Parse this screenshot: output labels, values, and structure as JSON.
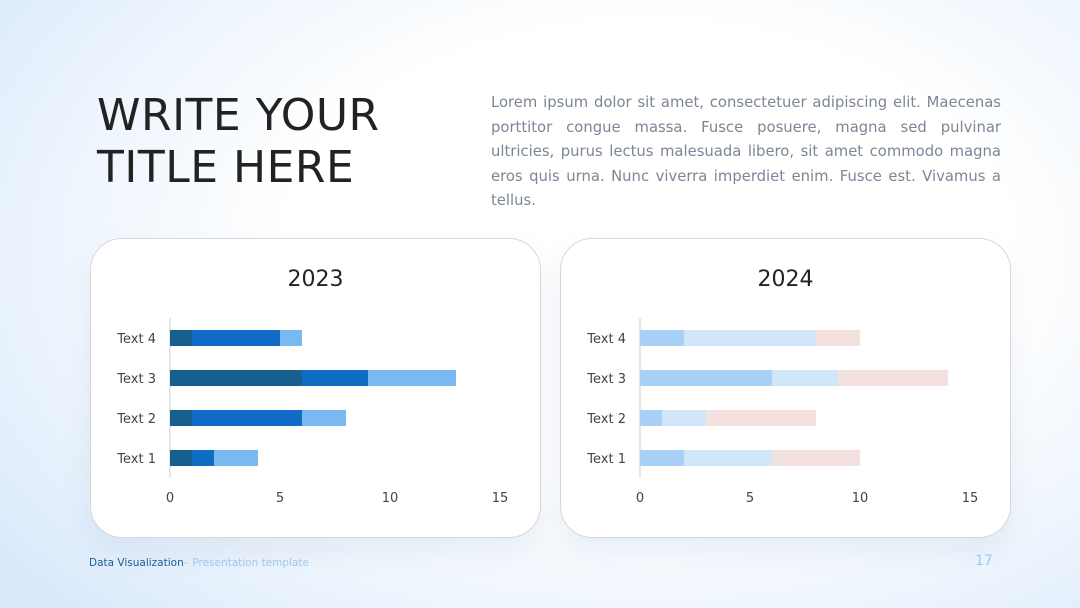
{
  "slide": {
    "title_lines": [
      "WRITE YOUR",
      "TITLE HERE"
    ],
    "body": "Lorem ipsum dolor sit amet, consectetuer adipiscing elit. Maecenas porttitor congue massa. Fusce posuere, magna sed pulvinar ultricies, purus lectus malesuada libero, sit amet commodo magna eros quis urna. Nunc viverra imperdiet enim. Fusce est. Vivamus a tellus.",
    "footer_main": "Data Visualization",
    "footer_sub": "– Presentation template",
    "page_number": "17"
  },
  "chart_data": [
    {
      "type": "bar",
      "orientation": "horizontal",
      "stacked": true,
      "title": "2023",
      "categories": [
        "Text 1",
        "Text 2",
        "Text 3",
        "Text 4"
      ],
      "series": [
        {
          "values": [
            1,
            1,
            6,
            1
          ],
          "color": "#175f8c"
        },
        {
          "values": [
            1,
            5,
            3,
            4
          ],
          "color": "#106bc4"
        },
        {
          "values": [
            2,
            2,
            4,
            1
          ],
          "color": "#7ab8f2"
        }
      ],
      "xlim": [
        0,
        15
      ],
      "xticks": [
        "0",
        "5",
        "10",
        "15"
      ],
      "grid": false
    },
    {
      "type": "bar",
      "orientation": "horizontal",
      "stacked": true,
      "title": "2024",
      "categories": [
        "Text 1",
        "Text 2",
        "Text 3",
        "Text 4"
      ],
      "series": [
        {
          "values": [
            2,
            1,
            6,
            2
          ],
          "color": "#a9d1f8"
        },
        {
          "values": [
            4,
            2,
            3,
            6
          ],
          "color": "#d2e6fa"
        },
        {
          "values": [
            4,
            5,
            5,
            2
          ],
          "color": "#f2e1df"
        }
      ],
      "xlim": [
        0,
        15
      ],
      "xticks": [
        "0",
        "5",
        "10",
        "15"
      ],
      "grid": false
    }
  ]
}
